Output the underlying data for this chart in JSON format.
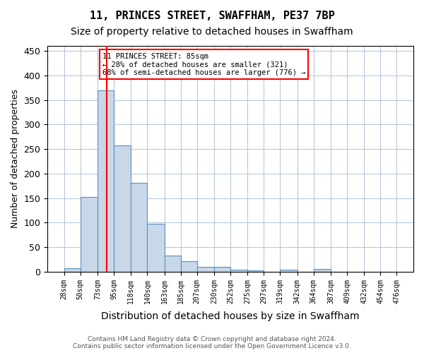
{
  "title1": "11, PRINCES STREET, SWAFFHAM, PE37 7BP",
  "title2": "Size of property relative to detached houses in Swaffham",
  "xlabel": "Distribution of detached houses by size in Swaffham",
  "ylabel": "Number of detached properties",
  "bin_edges": [
    28,
    50,
    73,
    95,
    118,
    140,
    163,
    185,
    207,
    230,
    252,
    275,
    297,
    319,
    342,
    364,
    387,
    409,
    432,
    454,
    476
  ],
  "bar_heights": [
    7,
    152,
    370,
    257,
    181,
    97,
    33,
    21,
    10,
    10,
    4,
    3,
    0,
    4,
    0,
    5,
    0,
    0,
    0,
    0
  ],
  "bar_color": "#c8d8e8",
  "bar_edge_color": "#5a8fbc",
  "red_line_x": 85,
  "ylim": [
    0,
    460
  ],
  "yticks": [
    0,
    50,
    100,
    150,
    200,
    250,
    300,
    350,
    400,
    450
  ],
  "annotation_line1": "11 PRINCES STREET: 85sqm",
  "annotation_line2": "← 28% of detached houses are smaller (321)",
  "annotation_line3": "68% of semi-detached houses are larger (776) →",
  "footnote1": "Contains HM Land Registry data © Crown copyright and database right 2024.",
  "footnote2": "Contains public sector information licensed under the Open Government Licence v3.0.",
  "background_color": "#ffffff",
  "grid_color": "#b0c4d8"
}
